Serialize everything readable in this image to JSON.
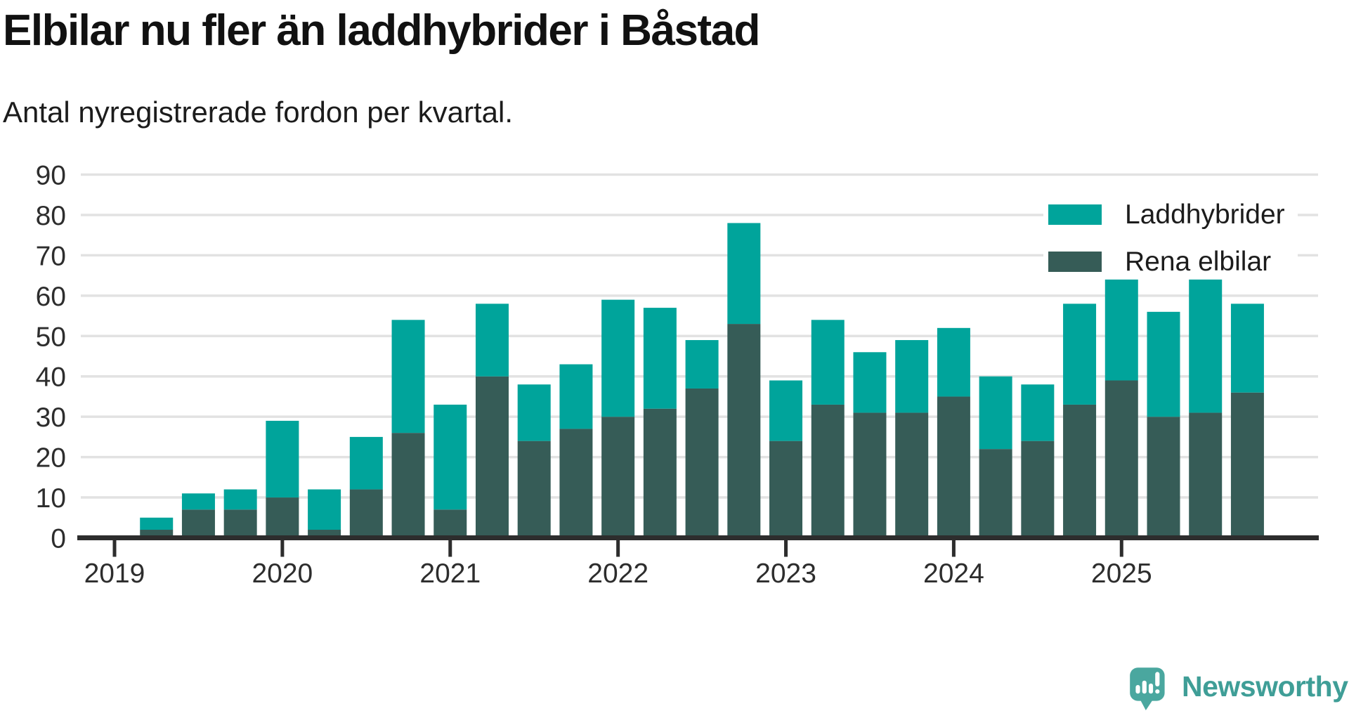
{
  "header": {
    "title": "Elbilar nu fler än laddhybrider i Båstad",
    "subtitle": "Antal nyregistrerade fordon per kvartal."
  },
  "legend": {
    "items": [
      {
        "label": "Laddhybrider",
        "color": "#00a49b"
      },
      {
        "label": "Rena elbilar",
        "color": "#365c57"
      }
    ]
  },
  "chart_data": {
    "type": "bar",
    "stacked": true,
    "title": "Elbilar nu fler än laddhybrider i Båstad",
    "subtitle": "Antal nyregistrerade fordon per kvartal.",
    "categories": [
      "2019 K1",
      "2019 K2",
      "2019 K3",
      "2019 K4",
      "2020 K1",
      "2020 K2",
      "2020 K3",
      "2020 K4",
      "2021 K1",
      "2021 K2",
      "2021 K3",
      "2021 K4",
      "2022 K1",
      "2022 K2",
      "2022 K3",
      "2022 K4",
      "2023 K1",
      "2023 K2",
      "2023 K3",
      "2023 K4",
      "2024 K1",
      "2024 K2",
      "2024 K3",
      "2024 K4",
      "2025 K1",
      "2025 K2",
      "2025 K3",
      "2025 K4"
    ],
    "series": [
      {
        "name": "Rena elbilar",
        "color": "#365c57",
        "values": [
          0,
          2,
          7,
          7,
          10,
          2,
          12,
          26,
          7,
          40,
          24,
          27,
          30,
          32,
          37,
          53,
          24,
          33,
          31,
          31,
          35,
          22,
          24,
          33,
          39,
          30,
          31,
          36
        ]
      },
      {
        "name": "Laddhybrider",
        "color": "#00a49b",
        "values": [
          0,
          3,
          4,
          5,
          19,
          10,
          13,
          28,
          26,
          18,
          14,
          16,
          29,
          25,
          12,
          25,
          15,
          21,
          15,
          18,
          17,
          18,
          14,
          25,
          25,
          26,
          33,
          22
        ]
      }
    ],
    "totals": [
      0,
      5,
      11,
      12,
      29,
      12,
      25,
      54,
      33,
      58,
      38,
      43,
      59,
      57,
      49,
      78,
      39,
      54,
      46,
      49,
      52,
      40,
      38,
      58,
      64,
      56,
      64,
      58
    ],
    "x_tick_labels": [
      "2019",
      "2020",
      "2021",
      "2022",
      "2023",
      "2024",
      "2025"
    ],
    "x_tick_quarter_indices": [
      0,
      4,
      8,
      12,
      16,
      20,
      24
    ],
    "ylim": [
      0,
      90
    ],
    "ytick_step": 10,
    "grid": true,
    "legend_position": "top-right"
  },
  "footer": {
    "brand": "Newsworthy"
  },
  "colors": {
    "laddhybrider": "#00a49b",
    "rena_elbilar": "#365c57",
    "grid": "#e2e2e2",
    "axis": "#2d2d2d",
    "tick_text": "#2d2d2d",
    "brand_text": "#3f9e97",
    "brand_mark": "#4aa79f"
  }
}
